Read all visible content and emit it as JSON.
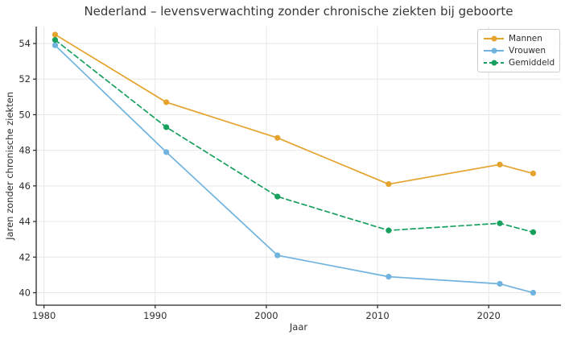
{
  "figure": {
    "title": "Nederland – levensverwachting zonder chronische ziekten bij geboorte"
  },
  "chart_data": {
    "type": "line",
    "title": "Nederland – levensverwachting zonder chronische ziekten bij geboorte",
    "xlabel": "Jaar",
    "ylabel": "Jaren zonder chronische ziekten",
    "x": [
      1981,
      1991,
      2001,
      2011,
      2021,
      2024
    ],
    "series": [
      {
        "name": "Mannen",
        "color": "#E5A32E",
        "style": "solid",
        "marker": "circle",
        "values": [
          54.5,
          50.7,
          48.7,
          46.1,
          47.2,
          46.7
        ]
      },
      {
        "name": "Vrouwen",
        "color": "#6FB3DE",
        "style": "solid",
        "marker": "circle",
        "values": [
          53.9,
          47.9,
          42.1,
          40.9,
          40.5,
          40.0
        ]
      },
      {
        "name": "Gemiddeld",
        "color": "#17A05E",
        "style": "dashed",
        "marker": "circle",
        "values": [
          54.2,
          49.3,
          45.4,
          43.5,
          43.9,
          43.4
        ]
      }
    ],
    "xticks": [
      1980,
      1990,
      2000,
      2010,
      2020
    ],
    "yticks": [
      40,
      42,
      44,
      46,
      48,
      50,
      52,
      54
    ],
    "xlim": [
      1979.3,
      2026.5
    ],
    "ylim": [
      39.3,
      54.95
    ],
    "grid": true,
    "grid_color": "#e7e7e7",
    "axis_color": "#262626",
    "tick_label_color": "#2e2e2e",
    "legend_position": "upper right"
  }
}
